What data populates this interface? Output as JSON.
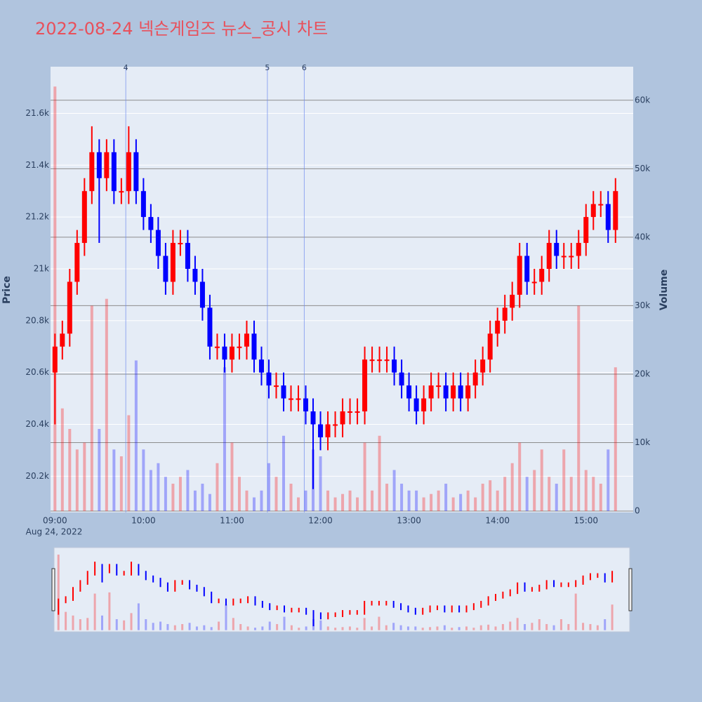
{
  "chart_data": {
    "type": "candlestick",
    "title": "2022-08-24 넥슨게임즈 뉴스_공시 차트",
    "ylabel": "Price",
    "y2label": "Volume",
    "x_date_label": "Aug 24, 2022",
    "increasing_color": "#ff0000",
    "decreasing_color": "#0000ff",
    "x": [
      "09:00",
      "09:05",
      "09:10",
      "09:15",
      "09:20",
      "09:25",
      "09:30",
      "09:35",
      "09:40",
      "09:45",
      "09:50",
      "09:55",
      "10:00",
      "10:05",
      "10:10",
      "10:15",
      "10:20",
      "10:25",
      "10:30",
      "10:35",
      "10:40",
      "10:45",
      "10:50",
      "10:55",
      "11:00",
      "11:05",
      "11:10",
      "11:15",
      "11:20",
      "11:25",
      "11:30",
      "11:35",
      "11:40",
      "11:45",
      "11:50",
      "11:55",
      "12:00",
      "12:05",
      "12:10",
      "12:15",
      "12:20",
      "12:25",
      "12:30",
      "12:35",
      "12:40",
      "12:45",
      "12:50",
      "12:55",
      "13:00",
      "13:05",
      "13:10",
      "13:15",
      "13:20",
      "13:25",
      "13:30",
      "13:35",
      "13:40",
      "13:45",
      "13:50",
      "13:55",
      "14:00",
      "14:05",
      "14:10",
      "14:15",
      "14:20",
      "14:25",
      "14:30",
      "14:35",
      "14:40",
      "14:45",
      "14:50",
      "14:55",
      "15:00",
      "15:05",
      "15:10",
      "15:15",
      "15:20"
    ],
    "open": [
      20600,
      20700,
      20750,
      20950,
      21100,
      21300,
      21450,
      21350,
      21450,
      21300,
      21300,
      21450,
      21300,
      21200,
      21150,
      21050,
      20950,
      21100,
      21100,
      21000,
      20950,
      20850,
      20700,
      20700,
      20650,
      20700,
      20700,
      20750,
      20650,
      20600,
      20550,
      20550,
      20500,
      20500,
      20500,
      20450,
      20400,
      20350,
      20400,
      20400,
      20450,
      20450,
      20450,
      20650,
      20650,
      20650,
      20650,
      20600,
      20550,
      20500,
      20450,
      20500,
      20550,
      20550,
      20500,
      20550,
      20500,
      20550,
      20600,
      20650,
      20750,
      20800,
      20850,
      20900,
      21050,
      20950,
      20950,
      21000,
      21100,
      21050,
      21050,
      21050,
      21100,
      21200,
      21250,
      21250,
      21150
    ],
    "high": [
      20750,
      20800,
      21000,
      21150,
      21350,
      21550,
      21500,
      21500,
      21500,
      21350,
      21550,
      21500,
      21350,
      21250,
      21200,
      21100,
      21150,
      21150,
      21150,
      21050,
      21000,
      20900,
      20750,
      20750,
      20750,
      20750,
      20800,
      20800,
      20700,
      20650,
      20600,
      20600,
      20550,
      20550,
      20550,
      20500,
      20450,
      20450,
      20450,
      20500,
      20500,
      20500,
      20700,
      20700,
      20700,
      20700,
      20700,
      20650,
      20600,
      20550,
      20550,
      20600,
      20600,
      20600,
      20600,
      20600,
      20600,
      20650,
      20700,
      20800,
      20850,
      20900,
      20950,
      21100,
      21100,
      21000,
      21050,
      21150,
      21150,
      21100,
      21100,
      21150,
      21250,
      21300,
      21300,
      21300,
      21350
    ],
    "low": [
      20400,
      20650,
      20700,
      20900,
      21050,
      21250,
      21100,
      21300,
      21250,
      21250,
      21250,
      21250,
      21150,
      21100,
      21000,
      20900,
      20900,
      21050,
      20950,
      20900,
      20800,
      20650,
      20650,
      20600,
      20600,
      20650,
      20650,
      20600,
      20550,
      20500,
      20500,
      20450,
      20450,
      20450,
      20400,
      20150,
      20300,
      20300,
      20350,
      20350,
      20400,
      20400,
      20400,
      20600,
      20600,
      20600,
      20550,
      20500,
      20450,
      20400,
      20400,
      20450,
      20500,
      20450,
      20450,
      20450,
      20450,
      20500,
      20550,
      20600,
      20700,
      20750,
      20800,
      20850,
      20900,
      20900,
      20900,
      20950,
      21000,
      21000,
      21000,
      21000,
      21050,
      21150,
      21200,
      21100,
      21100
    ],
    "close": [
      20700,
      20750,
      20950,
      21100,
      21300,
      21450,
      21350,
      21450,
      21300,
      21300,
      21450,
      21300,
      21200,
      21150,
      21050,
      20950,
      21100,
      21100,
      21000,
      20950,
      20850,
      20700,
      20700,
      20650,
      20700,
      20700,
      20750,
      20650,
      20600,
      20550,
      20550,
      20500,
      20500,
      20500,
      20450,
      20400,
      20350,
      20400,
      20400,
      20450,
      20450,
      20450,
      20650,
      20650,
      20650,
      20650,
      20600,
      20550,
      20500,
      20450,
      20500,
      20550,
      20550,
      20500,
      20550,
      20500,
      20550,
      20600,
      20650,
      20750,
      20800,
      20850,
      20900,
      21050,
      20950,
      20950,
      21000,
      21100,
      21050,
      21050,
      21050,
      21100,
      21200,
      21250,
      21250,
      21150,
      21300
    ],
    "volume": [
      62000,
      15000,
      12000,
      9000,
      10000,
      30000,
      12000,
      31000,
      9000,
      8000,
      14000,
      22000,
      9000,
      6000,
      7000,
      5000,
      4000,
      5000,
      6000,
      3000,
      4000,
      2500,
      7000,
      21000,
      10000,
      5000,
      3000,
      2000,
      3000,
      7000,
      5000,
      11000,
      4000,
      2000,
      3000,
      9000,
      8000,
      3000,
      2000,
      2500,
      3000,
      2000,
      10000,
      3000,
      11000,
      4000,
      6000,
      4000,
      3000,
      3000,
      2000,
      2500,
      3000,
      4000,
      2000,
      2500,
      3000,
      2000,
      4000,
      4500,
      3000,
      5000,
      7000,
      10000,
      5000,
      6000,
      9000,
      5000,
      4000,
      9000,
      5000,
      30000,
      6000,
      5000,
      4000,
      9000,
      21000
    ],
    "xlim": [
      "08:57",
      "15:32"
    ],
    "xticks": [
      "09:00",
      "10:00",
      "11:00",
      "12:00",
      "13:00",
      "14:00",
      "15:00"
    ],
    "ylim": [
      20060,
      21780
    ],
    "yticks": [
      {
        "value": 20200,
        "label": "20.2k"
      },
      {
        "value": 20400,
        "label": "20.4k"
      },
      {
        "value": 20600,
        "label": "20.6k"
      },
      {
        "value": 20800,
        "label": "20.8k"
      },
      {
        "value": 21000,
        "label": "21k"
      },
      {
        "value": 21200,
        "label": "21.2k"
      },
      {
        "value": 21400,
        "label": "21.4k"
      },
      {
        "value": 21600,
        "label": "21.6k"
      }
    ],
    "y2lim": [
      -200,
      64900
    ],
    "y2ticks": [
      0,
      {
        "value": 10000,
        "label": "10k"
      },
      {
        "value": 20000,
        "label": "20k"
      },
      {
        "value": 30000,
        "label": "30k"
      },
      {
        "value": 40000,
        "label": "40k"
      },
      {
        "value": 50000,
        "label": "50k"
      },
      {
        "value": 60000,
        "label": "60k"
      }
    ],
    "annotations": [
      {
        "x": "09:48",
        "label": "4"
      },
      {
        "x": "11:24",
        "label": "5"
      },
      {
        "x": "11:49",
        "label": "6"
      }
    ],
    "rangeslider": true
  }
}
